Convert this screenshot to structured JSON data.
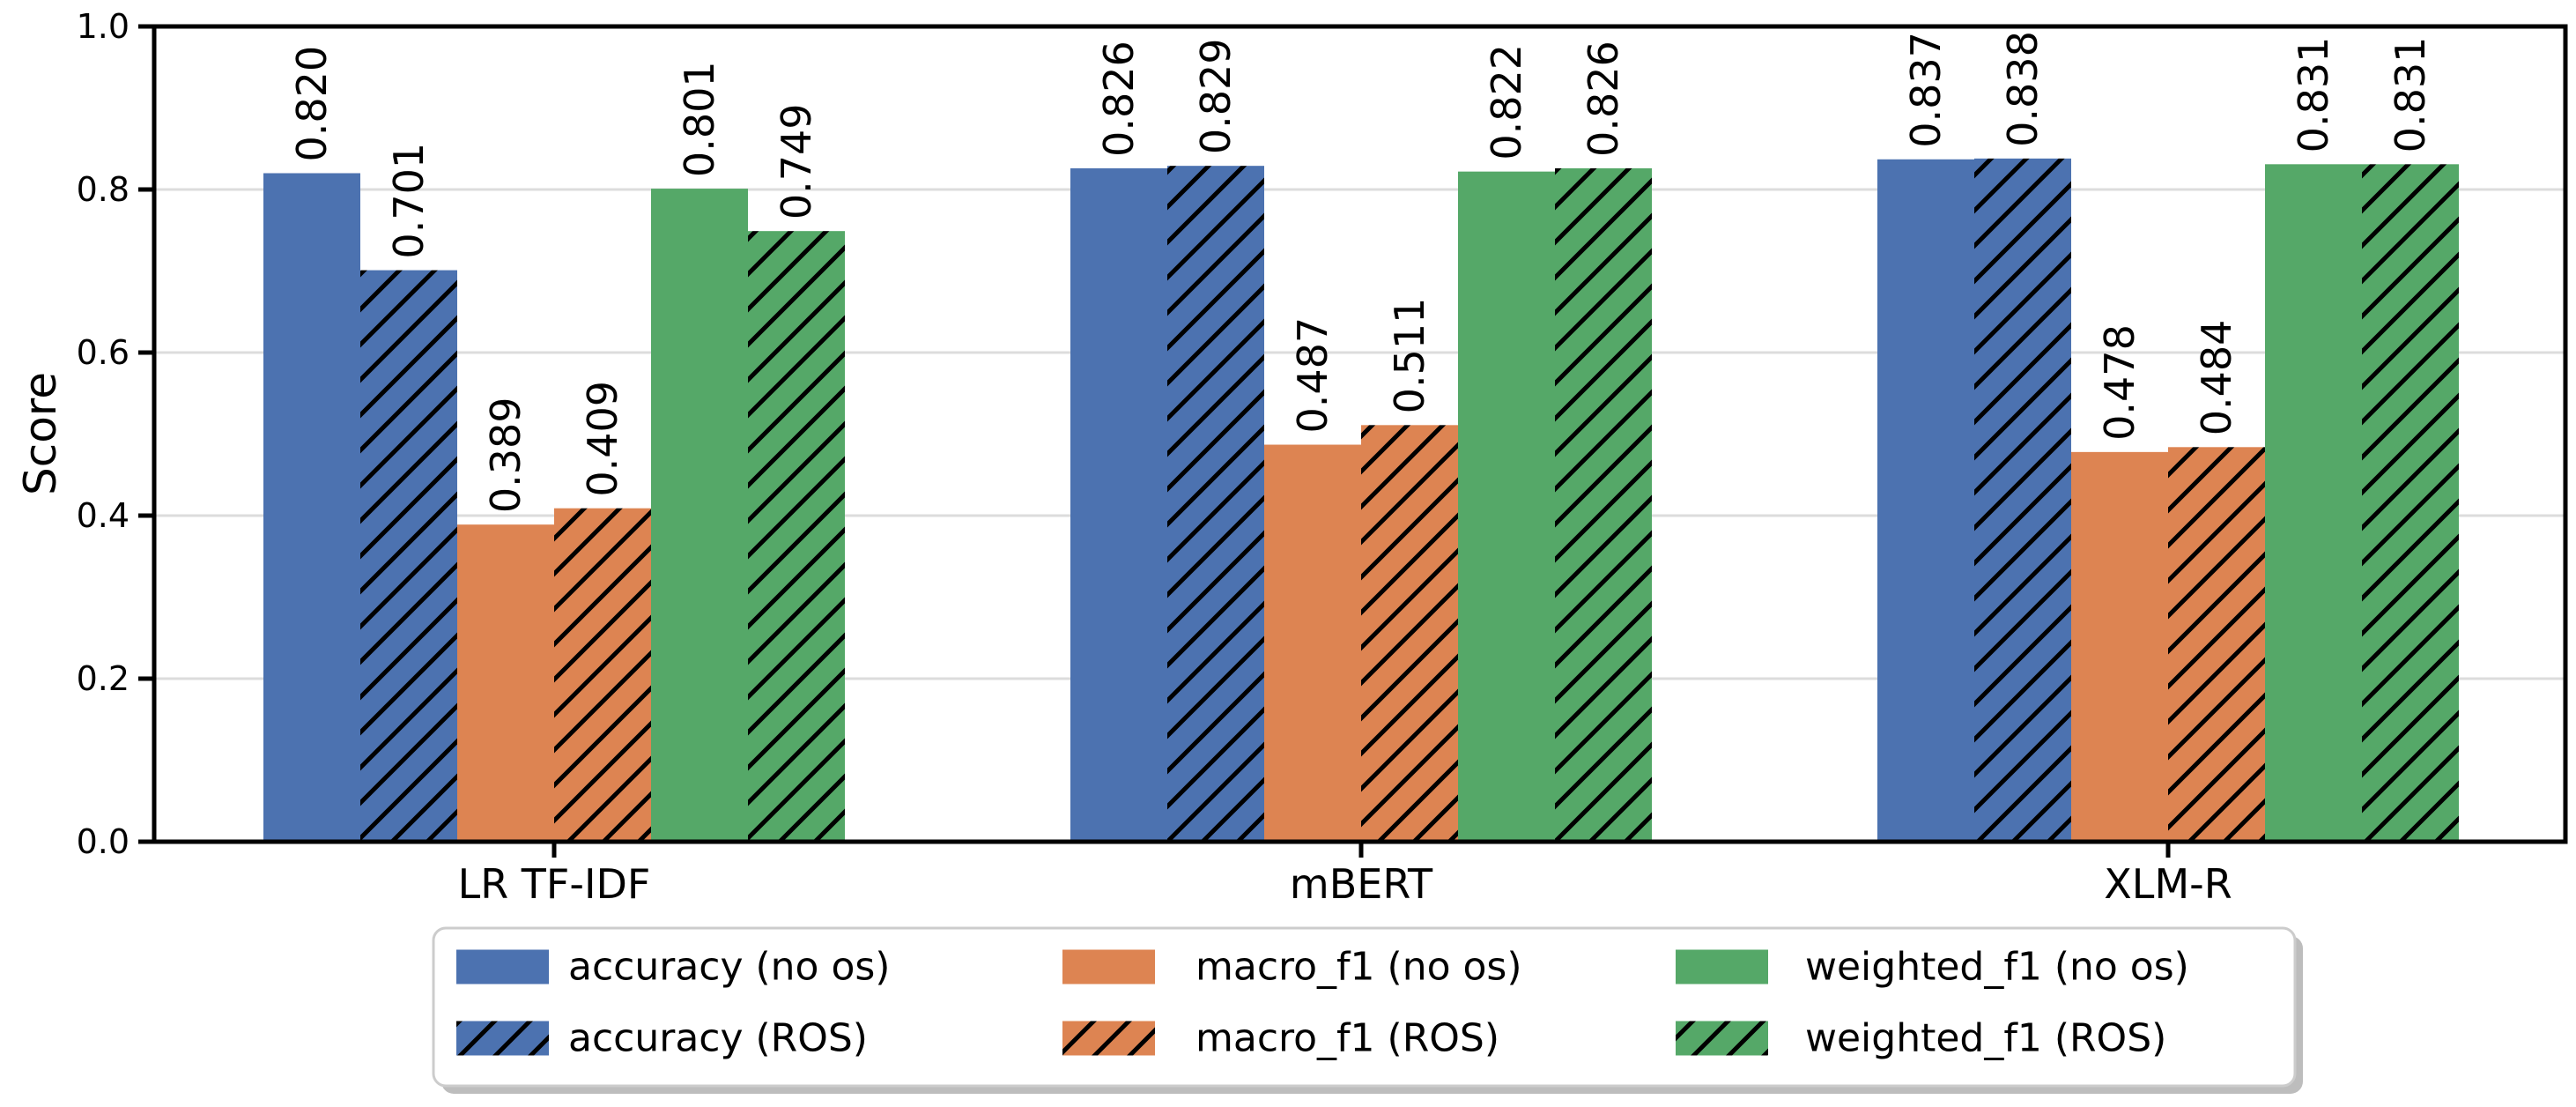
{
  "figure": {
    "background": "#ffffff"
  },
  "chart_data": {
    "type": "bar",
    "title": "",
    "xlabel": "",
    "ylabel": "Score",
    "ylim": [
      0.0,
      1.0
    ],
    "yticks": [
      0.0,
      0.2,
      0.4,
      0.6,
      0.8,
      1.0
    ],
    "ytick_labels": [
      "0.0",
      "0.2",
      "0.4",
      "0.6",
      "0.8",
      "1.0"
    ],
    "grid": "horizontal",
    "grid_color": "#dcdcdc",
    "axis_color": "#000000",
    "categories": [
      "LR TF-IDF",
      "mBERT",
      "XLM-R"
    ],
    "series": [
      {
        "name": "accuracy (no os)",
        "color": "#4C72B0",
        "hatch": false,
        "values": [
          0.82,
          0.826,
          0.837
        ]
      },
      {
        "name": "accuracy (ROS)",
        "color": "#4C72B0",
        "hatch": true,
        "values": [
          0.701,
          0.829,
          0.838
        ]
      },
      {
        "name": "macro_f1 (no os)",
        "color": "#DD8452",
        "hatch": false,
        "values": [
          0.389,
          0.487,
          0.478
        ]
      },
      {
        "name": "macro_f1 (ROS)",
        "color": "#DD8452",
        "hatch": true,
        "values": [
          0.409,
          0.511,
          0.484
        ]
      },
      {
        "name": "weighted_f1 (no os)",
        "color": "#55A868",
        "hatch": false,
        "values": [
          0.801,
          0.822,
          0.831
        ]
      },
      {
        "name": "weighted_f1 (ROS)",
        "color": "#55A868",
        "hatch": true,
        "values": [
          0.749,
          0.826,
          0.831
        ]
      }
    ],
    "bar_value_labels": {
      "show": true,
      "decimals": 3,
      "rotation_degrees": 90,
      "color": "#000000"
    },
    "hatch": {
      "pattern": "diagonal-forward-slash",
      "line_color": "#000000"
    },
    "legend": {
      "position": "bottom-center",
      "columns": 3,
      "rows": 2,
      "shadow": true,
      "border_color": "#cccccc",
      "background": "#ffffff",
      "entries_column_major": [
        "accuracy (no os)",
        "accuracy (ROS)",
        "macro_f1 (no os)",
        "macro_f1 (ROS)",
        "weighted_f1 (no os)",
        "weighted_f1 (ROS)"
      ]
    }
  }
}
